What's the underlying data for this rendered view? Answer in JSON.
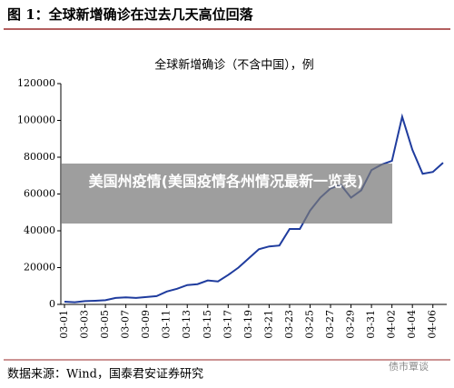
{
  "header": "图 1：全球新增确诊在过去几天高位回落",
  "chart_data": {
    "type": "line",
    "title": "全球新增确诊（不含中国），例",
    "categories": [
      "03-01",
      null,
      "03-03",
      null,
      "03-05",
      null,
      "03-07",
      null,
      "03-09",
      null,
      "03-11",
      null,
      "03-13",
      null,
      "03-15",
      null,
      "03-17",
      null,
      "03-19",
      null,
      "03-21",
      null,
      "03-23",
      null,
      "03-25",
      null,
      "03-27",
      null,
      "03-29",
      null,
      "03-31",
      null,
      "04-02",
      null,
      "04-04",
      null,
      "04-06",
      null
    ],
    "series": [
      {
        "name": "全球新增确诊（不含中国）",
        "color": "#1f3c9e",
        "values": [
          1500,
          1200,
          1800,
          2000,
          2300,
          3500,
          3800,
          3500,
          4000,
          4500,
          7000,
          8500,
          10500,
          11000,
          13000,
          12500,
          16000,
          20000,
          25000,
          30000,
          31500,
          32000,
          41000,
          41000,
          51000,
          58000,
          63000,
          65000,
          58000,
          62000,
          73000,
          76000,
          78000,
          102000,
          84000,
          71000,
          72000,
          77000
        ]
      }
    ],
    "ylim": [
      0,
      120000
    ],
    "yticks": [
      0,
      20000,
      40000,
      60000,
      80000,
      100000,
      120000
    ],
    "grid": false
  },
  "overlay": "美国州疫情(美国疫情各州情况最新一览表)",
  "source": "数据来源：Wind，国泰君安证券研究",
  "watermark": "债市覃谈"
}
